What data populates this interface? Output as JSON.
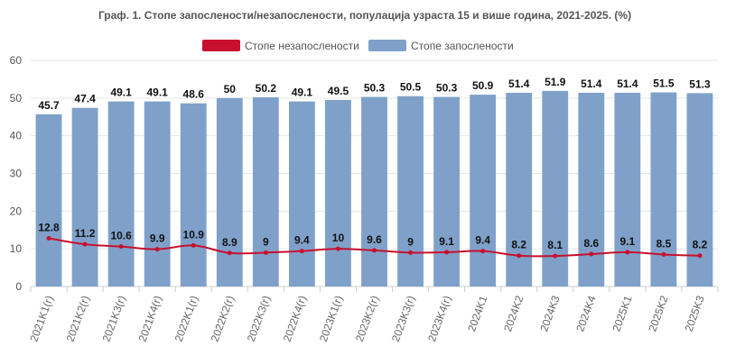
{
  "chart_data": {
    "type": "bar",
    "title": "Граф. 1. Стопе запослености/незапослености, популација узраста 15 и више година, 2021-2025. (%)",
    "categories": [
      "2021K1(r)",
      "2021K2(r)",
      "2021K3(r)",
      "2021K4(r)",
      "2022K1(r)",
      "2022K2(r)",
      "2022K3(r)",
      "2022K4(r)",
      "2023K1(r)",
      "2023K2(r)",
      "2023K3(r)",
      "2023K4(r)",
      "2024K1",
      "2024K2",
      "2024K3",
      "2024K4",
      "2025K1",
      "2025K2",
      "2025K3"
    ],
    "series": [
      {
        "name": "Стопе незапослености",
        "type": "line",
        "color": "#c8102e",
        "values": [
          12.8,
          11.2,
          10.6,
          9.9,
          10.9,
          8.9,
          9,
          9.4,
          10,
          9.6,
          9,
          9.1,
          9.4,
          8.2,
          8.1,
          8.6,
          9.1,
          8.5,
          8.2
        ]
      },
      {
        "name": "Стопе запослености",
        "type": "bar",
        "color": "#7fa1c9",
        "values": [
          45.7,
          47.4,
          49.1,
          49.1,
          48.6,
          50,
          50.2,
          49.1,
          49.5,
          50.3,
          50.5,
          50.3,
          50.9,
          51.4,
          51.9,
          51.4,
          51.4,
          51.5,
          51.3
        ]
      }
    ],
    "yticks": [
      0,
      10,
      20,
      30,
      40,
      50,
      60
    ],
    "ylim": [
      0,
      60
    ],
    "legend_position": "top-center",
    "grid": true
  }
}
